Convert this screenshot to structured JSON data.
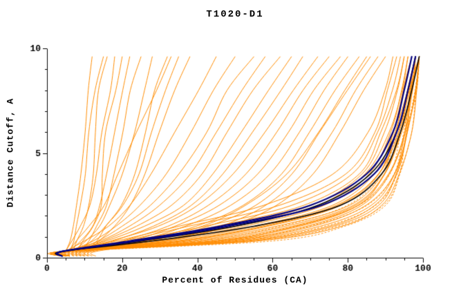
{
  "chart_data": {
    "type": "line",
    "title": "T1020-D1",
    "xlabel": "Percent of Residues (CA)",
    "ylabel": "Distance Cutoff, A",
    "xlim": [
      0,
      100
    ],
    "ylim": [
      0,
      10
    ],
    "x_ticks": [
      0,
      20,
      40,
      60,
      80,
      100
    ],
    "y_ticks": [
      0,
      5,
      10
    ],
    "x_minor_step": 5,
    "y_minor_step": 1,
    "grid": false,
    "legend": "none",
    "axis_color": "#000000",
    "control_y": [
      0.3,
      0.8,
      1.5,
      2.5,
      4.0,
      6.0,
      8.0,
      9.6
    ],
    "series_groups": [
      {
        "name": "orange-ensemble-solid",
        "color": "#ff8c00",
        "line_width": 1,
        "dash": [],
        "curves_x": [
          [
            5,
            6,
            7,
            8,
            9,
            10,
            11,
            12
          ],
          [
            6,
            7,
            8,
            9,
            10,
            11,
            13,
            15
          ],
          [
            7,
            8,
            10,
            11,
            12,
            13,
            14,
            16
          ],
          [
            5,
            7,
            9,
            11,
            13,
            15,
            17,
            18
          ],
          [
            8,
            10,
            12,
            14,
            15,
            16,
            18,
            20
          ],
          [
            6,
            9,
            12,
            14,
            16,
            18,
            20,
            22
          ],
          [
            9,
            11,
            13,
            16,
            18,
            20,
            22,
            25
          ],
          [
            7,
            10,
            14,
            17,
            20,
            23,
            26,
            28
          ],
          [
            10,
            13,
            16,
            20,
            23,
            26,
            29,
            32
          ],
          [
            8,
            12,
            16,
            20,
            24,
            28,
            32,
            35
          ],
          [
            11,
            14,
            18,
            22,
            26,
            30,
            34,
            38
          ],
          [
            6,
            8,
            11,
            15,
            19,
            24,
            29,
            33
          ],
          [
            5,
            10,
            16,
            22,
            28,
            34,
            40,
            45
          ],
          [
            6,
            12,
            18,
            25,
            32,
            38,
            44,
            50
          ],
          [
            7,
            13,
            20,
            28,
            35,
            42,
            48,
            55
          ],
          [
            5,
            14,
            22,
            30,
            38,
            45,
            52,
            58
          ],
          [
            8,
            15,
            24,
            33,
            41,
            48,
            55,
            62
          ],
          [
            6,
            16,
            26,
            36,
            44,
            52,
            59,
            65
          ],
          [
            9,
            18,
            28,
            38,
            47,
            55,
            62,
            68
          ],
          [
            7,
            17,
            29,
            40,
            50,
            58,
            65,
            72
          ],
          [
            10,
            20,
            32,
            43,
            53,
            61,
            68,
            75
          ],
          [
            8,
            22,
            34,
            46,
            56,
            64,
            71,
            78
          ],
          [
            11,
            24,
            37,
            49,
            59,
            67,
            74,
            80
          ],
          [
            9,
            25,
            40,
            52,
            62,
            70,
            77,
            83
          ],
          [
            12,
            28,
            43,
            55,
            65,
            73,
            80,
            86
          ],
          [
            10,
            30,
            46,
            58,
            68,
            76,
            82,
            88
          ],
          [
            13,
            32,
            48,
            61,
            71,
            78,
            84,
            90
          ],
          [
            11,
            26,
            41,
            53,
            64,
            72,
            79,
            85
          ],
          [
            4,
            18,
            35,
            58,
            76,
            85,
            90,
            92
          ],
          [
            5,
            20,
            38,
            62,
            79,
            87,
            91,
            93
          ],
          [
            4,
            22,
            42,
            65,
            81,
            88,
            92,
            94
          ],
          [
            6,
            24,
            45,
            68,
            83,
            89,
            93,
            95
          ],
          [
            5,
            26,
            48,
            70,
            84,
            90,
            93,
            95
          ],
          [
            4,
            28,
            50,
            72,
            85,
            91,
            94,
            96
          ],
          [
            6,
            30,
            52,
            74,
            86,
            91,
            94,
            96
          ],
          [
            5,
            32,
            55,
            76,
            87,
            92,
            95,
            97
          ],
          [
            4,
            34,
            57,
            77,
            88,
            92,
            95,
            97
          ],
          [
            6,
            36,
            59,
            78,
            88,
            93,
            95,
            97
          ],
          [
            5,
            38,
            61,
            80,
            89,
            93,
            96,
            98
          ],
          [
            4,
            40,
            63,
            81,
            90,
            94,
            96,
            98
          ],
          [
            6,
            42,
            65,
            82,
            90,
            94,
            96,
            98
          ],
          [
            5,
            44,
            67,
            83,
            91,
            95,
            97,
            98
          ],
          [
            4,
            46,
            69,
            84,
            91,
            95,
            97,
            99
          ],
          [
            6,
            48,
            71,
            85,
            92,
            95,
            97,
            99
          ],
          [
            5,
            50,
            73,
            86,
            92,
            96,
            97,
            99
          ],
          [
            4,
            52,
            75,
            87,
            93,
            96,
            98,
            99
          ],
          [
            6,
            54,
            76,
            88,
            93,
            96,
            98,
            99
          ],
          [
            5,
            56,
            78,
            89,
            94,
            97,
            98,
            99
          ],
          [
            4,
            45,
            66,
            83,
            90,
            94,
            97,
            98
          ],
          [
            6,
            35,
            58,
            78,
            88,
            93,
            96,
            98
          ]
        ]
      },
      {
        "name": "orange-ensemble-dotted",
        "color": "#ff8c00",
        "line_width": 1,
        "dash": [
          2,
          3
        ],
        "curves_x": [
          [
            5,
            40,
            62,
            80,
            89,
            93,
            96,
            98
          ],
          [
            4,
            44,
            66,
            83,
            91,
            94,
            97,
            98
          ],
          [
            6,
            48,
            70,
            85,
            92,
            95,
            97,
            99
          ],
          [
            5,
            52,
            74,
            87,
            93,
            96,
            98,
            99
          ],
          [
            4,
            56,
            77,
            89,
            94,
            96,
            98,
            99
          ],
          [
            6,
            60,
            79,
            90,
            94,
            97,
            98,
            99
          ]
        ]
      },
      {
        "name": "black-curves",
        "color": "#000000",
        "line_width": 1.6,
        "dash": [],
        "curves_x": [
          [
            4,
            25,
            50,
            72,
            86,
            93,
            96,
            98
          ],
          [
            4,
            28,
            55,
            78,
            89,
            94,
            97,
            99
          ]
        ]
      },
      {
        "name": "navy-curves",
        "color": "#000080",
        "line_width": 2.2,
        "dash": [],
        "curves_x": [
          [
            4,
            22,
            46,
            70,
            85,
            92,
            95,
            97
          ],
          [
            4,
            24,
            48,
            73,
            87,
            93,
            96,
            98
          ]
        ]
      }
    ]
  }
}
